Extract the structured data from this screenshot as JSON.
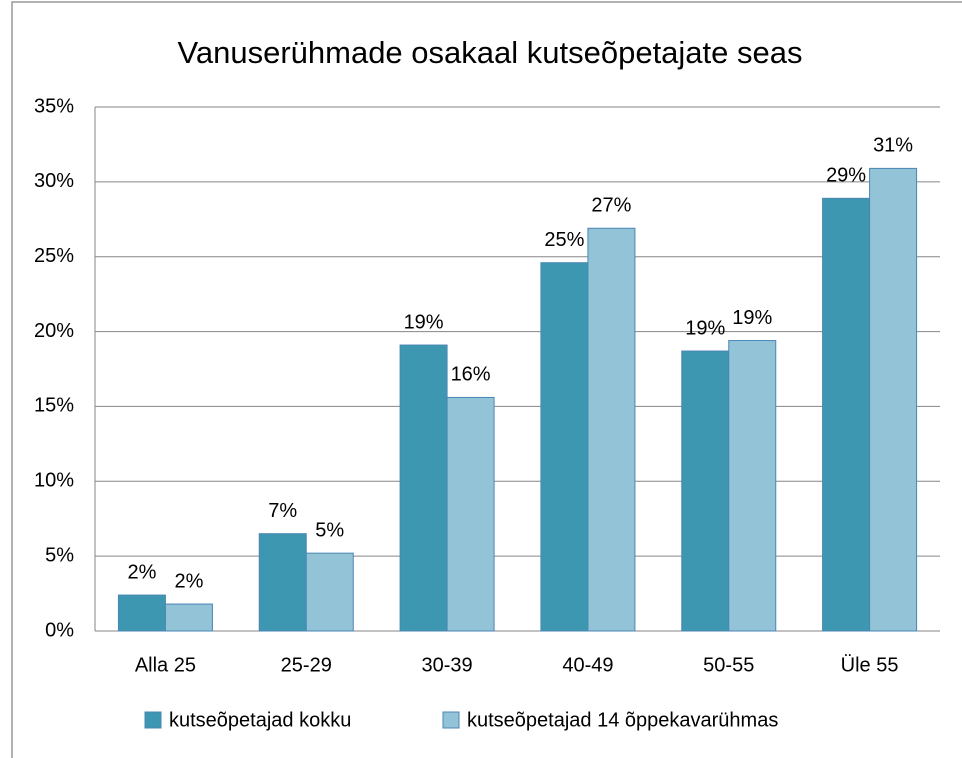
{
  "chart_data": {
    "type": "bar",
    "title": "Vanuserühmade  osakaal kutseõpetajate seas",
    "categories": [
      "Alla 25",
      "25-29",
      "30-39",
      "40-49",
      "50-55",
      "Üle 55"
    ],
    "series": [
      {
        "name": "kutseõpetajad kokku",
        "color": "#3d97b0",
        "values": [
          2.4,
          6.5,
          19.1,
          24.6,
          18.7,
          28.9
        ],
        "value_labels": [
          "2%",
          "7%",
          "19%",
          "25%",
          "19%",
          "29%"
        ]
      },
      {
        "name": "kutseõpetajad 14 õppekavarühmas",
        "color": "#93c3d6",
        "values": [
          1.8,
          5.2,
          15.6,
          26.9,
          19.4,
          30.9
        ],
        "value_labels": [
          "2%",
          "5%",
          "16%",
          "27%",
          "19%",
          "31%"
        ]
      }
    ],
    "ylim": [
      0,
      35
    ],
    "yticks": [
      {
        "value": 0,
        "label": "0%"
      },
      {
        "value": 5,
        "label": "5%"
      },
      {
        "value": 10,
        "label": "10%"
      },
      {
        "value": 15,
        "label": "15%"
      },
      {
        "value": 20,
        "label": "20%"
      },
      {
        "value": 25,
        "label": "25%"
      },
      {
        "value": 30,
        "label": "30%"
      },
      {
        "value": 35,
        "label": "35%"
      }
    ],
    "grid": true,
    "legend": "bottom"
  }
}
